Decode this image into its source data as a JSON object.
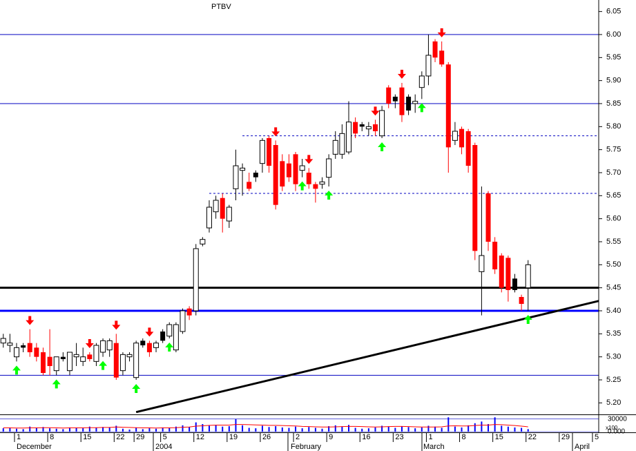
{
  "chart_data": {
    "type": "candlestick",
    "title": "PTBV",
    "categories": [
      null,
      null,
      "1",
      null,
      null,
      null,
      null,
      "8",
      null,
      null,
      null,
      null,
      "15",
      null,
      null,
      null,
      null,
      "22",
      null,
      null,
      "29",
      null,
      null,
      null,
      "5",
      null,
      null,
      null,
      null,
      "12",
      null,
      null,
      null,
      null,
      "19",
      null,
      null,
      null,
      null,
      "26",
      null,
      null,
      null,
      null,
      "2",
      null,
      null,
      null,
      null,
      "9",
      null,
      null,
      null,
      null,
      "16",
      null,
      null,
      null,
      null,
      "23",
      null,
      null,
      null,
      null,
      "1",
      null,
      null,
      null,
      null,
      "8",
      null,
      null,
      null,
      null,
      "15",
      null,
      null,
      null,
      null,
      "22",
      null,
      null,
      null,
      null,
      "29",
      null,
      null,
      null,
      null,
      "5"
    ],
    "months": [
      "December",
      "2004",
      "February",
      "March",
      "April"
    ],
    "open": [
      5.33,
      5.325,
      5.3,
      5.325,
      5.33,
      5.32,
      5.31,
      5.3,
      5.27,
      5.3,
      5.27,
      5.3,
      5.29,
      5.305,
      5.29,
      5.31,
      5.315,
      5.33,
      5.27,
      5.3,
      5.255,
      5.335,
      5.33,
      5.32,
      5.355,
      5.345,
      5.315,
      5.355,
      5.405,
      5.4,
      5.545,
      5.58,
      5.615,
      5.645,
      5.595,
      5.665,
      5.705,
      5.68,
      5.7,
      5.72,
      5.775,
      5.76,
      5.725,
      5.72,
      5.74,
      5.705,
      5.7,
      5.675,
      5.675,
      5.69,
      5.74,
      5.74,
      5.745,
      5.81,
      5.805,
      5.795,
      5.805,
      5.78,
      5.885,
      5.865,
      5.885,
      5.865,
      5.85,
      5.885,
      5.91,
      5.985,
      5.965,
      5.935,
      5.77,
      5.795,
      5.79,
      5.76,
      5.485,
      5.655,
      5.55,
      5.52,
      5.515,
      5.47,
      5.43,
      5.45,
      null,
      null,
      null,
      null,
      null,
      null,
      null,
      null,
      null,
      null
    ],
    "high": [
      5.35,
      5.35,
      5.33,
      5.33,
      5.36,
      5.33,
      5.32,
      5.36,
      5.3,
      5.31,
      5.31,
      5.33,
      5.32,
      5.31,
      5.33,
      5.34,
      5.34,
      5.35,
      5.31,
      5.31,
      5.335,
      5.34,
      5.335,
      5.335,
      5.36,
      5.375,
      5.375,
      5.405,
      5.41,
      5.545,
      5.56,
      5.64,
      5.65,
      5.655,
      5.63,
      5.75,
      5.72,
      5.7,
      5.705,
      5.775,
      5.78,
      5.77,
      5.74,
      5.74,
      5.745,
      5.73,
      5.71,
      5.68,
      5.69,
      5.74,
      5.79,
      5.805,
      5.855,
      5.82,
      5.81,
      5.81,
      5.815,
      5.845,
      5.89,
      5.87,
      5.895,
      5.87,
      5.87,
      5.92,
      6.0,
      5.99,
      5.985,
      5.94,
      5.81,
      5.8,
      5.795,
      5.765,
      5.67,
      5.66,
      5.56,
      5.525,
      5.52,
      5.48,
      5.435,
      5.51,
      null,
      null,
      null,
      null,
      null,
      null,
      null,
      null,
      null,
      null
    ],
    "low": [
      5.32,
      5.31,
      5.29,
      5.31,
      5.3,
      5.29,
      5.26,
      5.26,
      5.26,
      5.29,
      5.26,
      5.28,
      5.28,
      5.29,
      5.28,
      5.3,
      5.3,
      5.25,
      5.26,
      5.29,
      5.25,
      5.32,
      5.3,
      5.31,
      5.33,
      5.34,
      5.31,
      5.35,
      5.38,
      5.39,
      5.54,
      5.57,
      5.6,
      5.57,
      5.58,
      5.64,
      5.65,
      5.66,
      5.68,
      5.7,
      5.7,
      5.62,
      5.66,
      5.68,
      5.66,
      5.69,
      5.665,
      5.635,
      5.665,
      5.67,
      5.73,
      5.73,
      5.74,
      5.775,
      5.79,
      5.78,
      5.78,
      5.775,
      5.84,
      5.84,
      5.81,
      5.825,
      5.83,
      5.86,
      5.89,
      5.94,
      5.93,
      5.7,
      5.76,
      5.74,
      5.7,
      5.51,
      5.39,
      5.53,
      5.48,
      5.44,
      5.42,
      5.44,
      5.4,
      5.4,
      null,
      null,
      null,
      null,
      null,
      null,
      null,
      null,
      null,
      null
    ],
    "close": [
      5.34,
      5.33,
      5.32,
      5.32,
      5.31,
      5.3,
      5.265,
      5.28,
      5.3,
      5.295,
      5.31,
      5.305,
      5.3,
      5.295,
      5.325,
      5.335,
      5.335,
      5.255,
      5.305,
      5.305,
      5.33,
      5.325,
      5.31,
      5.33,
      5.335,
      5.37,
      5.37,
      5.4,
      5.39,
      5.535,
      5.555,
      5.625,
      5.64,
      5.6,
      5.625,
      5.715,
      5.71,
      5.665,
      5.69,
      5.77,
      5.715,
      5.63,
      5.67,
      5.69,
      5.675,
      5.715,
      5.675,
      5.665,
      5.68,
      5.73,
      5.77,
      5.785,
      5.81,
      5.785,
      5.8,
      5.8,
      5.79,
      5.835,
      5.85,
      5.855,
      5.825,
      5.835,
      5.855,
      5.91,
      5.955,
      5.95,
      5.935,
      5.755,
      5.79,
      5.755,
      5.715,
      5.53,
      5.52,
      5.55,
      5.49,
      5.45,
      5.445,
      5.445,
      5.415,
      5.5,
      null,
      null,
      null,
      null,
      null,
      null,
      null,
      null,
      null,
      null
    ],
    "up_color": "#ffffff",
    "down_color": "#ff0000",
    "black_candles": [
      3,
      9,
      21,
      24,
      38,
      54,
      59,
      61,
      77
    ],
    "black_color": "#000000",
    "buy_signals": [
      2,
      8,
      15,
      20,
      25,
      45,
      49,
      57,
      63,
      79
    ],
    "sell_signals": [
      4,
      13,
      17,
      22,
      41,
      46,
      56,
      60,
      66
    ],
    "buy_color": "#00ff00",
    "sell_color": "#ff0000",
    "levels": [
      {
        "value": 6.0,
        "color": "#0000c0",
        "width": 1,
        "style": "solid"
      },
      {
        "value": 5.85,
        "color": "#0000c0",
        "width": 1,
        "style": "solid"
      },
      {
        "value": 5.26,
        "color": "#0000c0",
        "width": 1,
        "style": "solid"
      },
      {
        "value": 5.78,
        "color": "#0000c0",
        "width": 1,
        "style": "dashed",
        "from": 36
      },
      {
        "value": 5.655,
        "color": "#0000c0",
        "width": 1,
        "style": "dashed",
        "from": 31
      },
      {
        "value": 5.45,
        "color": "#000000",
        "width": 3,
        "style": "solid"
      },
      {
        "value": 5.4,
        "color": "#0000ff",
        "width": 3,
        "style": "solid"
      }
    ],
    "trendline": {
      "start": [
        20,
        5.18
      ],
      "end": [
        95,
        5.44
      ],
      "color": "#000000"
    },
    "ylim": [
      5.175,
      6.075
    ],
    "yticks": [
      {
        "value": 6.05,
        "label": "6.05"
      },
      {
        "value": 6.0,
        "label": "6.00"
      },
      {
        "value": 5.95,
        "label": "5.95"
      },
      {
        "value": 5.9,
        "label": "5.90"
      },
      {
        "value": 5.85,
        "label": "5.85"
      },
      {
        "value": 5.8,
        "label": "5.80"
      },
      {
        "value": 5.75,
        "label": "5.75"
      },
      {
        "value": 5.7,
        "label": "5.70"
      },
      {
        "value": 5.65,
        "label": "5.65"
      },
      {
        "value": 5.6,
        "label": "5.60"
      },
      {
        "value": 5.55,
        "label": "5.55"
      },
      {
        "value": 5.5,
        "label": "5.50"
      },
      {
        "value": 5.45,
        "label": "5.45"
      },
      {
        "value": 5.4,
        "label": "5.40"
      },
      {
        "value": 5.35,
        "label": "5.35"
      },
      {
        "value": 5.3,
        "label": "5.30"
      },
      {
        "value": 5.25,
        "label": "5.25"
      },
      {
        "value": 5.2,
        "label": "5.20"
      }
    ],
    "volume": {
      "values": [
        8000,
        9000,
        7000,
        6000,
        12000,
        9000,
        11000,
        8000,
        7000,
        6000,
        10000,
        9000,
        8000,
        12000,
        9000,
        11000,
        10000,
        14000,
        7000,
        5000,
        9000,
        6000,
        8000,
        7000,
        10000,
        9000,
        12000,
        15000,
        11000,
        22000,
        18000,
        14000,
        16000,
        12000,
        13000,
        30000,
        15000,
        9000,
        8000,
        14000,
        11000,
        13000,
        10000,
        9000,
        12000,
        8000,
        11000,
        9000,
        7000,
        13000,
        15000,
        12000,
        16000,
        9000,
        7000,
        8000,
        10000,
        14000,
        12000,
        9000,
        13000,
        11000,
        8000,
        10000,
        14000,
        12000,
        9000,
        34000,
        12000,
        10000,
        15000,
        20000,
        24000,
        18000,
        34000,
        14000,
        12000,
        10000,
        9000,
        6000,
        null,
        null,
        null,
        null,
        null,
        null,
        null,
        null,
        null,
        null
      ],
      "ma": [
        9000,
        9000,
        8500,
        8500,
        9000,
        9000,
        9500,
        9500,
        9000,
        8500,
        9000,
        9000,
        9000,
        9500,
        9500,
        10000,
        10000,
        11000,
        10500,
        10000,
        9500,
        9000,
        9000,
        8500,
        9000,
        9000,
        9500,
        10500,
        11000,
        13000,
        14000,
        15000,
        15500,
        15500,
        15500,
        17000,
        17000,
        16500,
        16000,
        15500,
        15000,
        15000,
        14500,
        14000,
        13500,
        12500,
        12000,
        11500,
        11000,
        11000,
        11500,
        12000,
        12500,
        12500,
        12000,
        11500,
        11000,
        11500,
        12000,
        12500,
        12500,
        12000,
        11500,
        11000,
        11000,
        11000,
        11500,
        13500,
        14000,
        13500,
        13500,
        14500,
        15500,
        15500,
        17000,
        16500,
        15500,
        14500,
        13000,
        11500,
        null,
        null,
        null,
        null,
        null,
        null,
        null,
        null,
        null,
        null
      ],
      "color": "#0000ff",
      "ma_color": "#ff0000",
      "ylim": [
        0,
        36000
      ],
      "yticks": [
        {
          "value": 0,
          "label": "0.000"
        },
        30000
      ],
      "unit": "x100"
    }
  }
}
